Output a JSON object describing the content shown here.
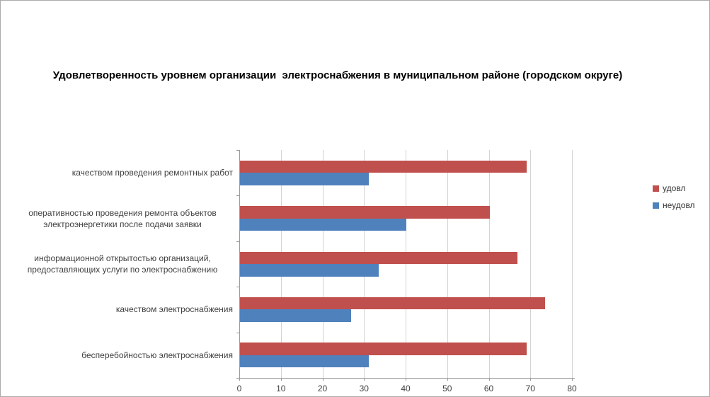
{
  "chart_data": {
    "type": "bar",
    "orientation": "horizontal",
    "title": "Удовлетворенность уровнем организации  электроснабжения в муниципальном районе (городском округе)",
    "categories": [
      "качеством проведения ремонтных работ",
      "оперативностью проведения ремонта объектов электроэнергетики после подачи заявки",
      "информационной открытостью организаций, предоставляющих услуги по электроснабжению",
      "качеством электроснабжения",
      "бесперебойностью электроснабжения"
    ],
    "series": [
      {
        "name": "удовл",
        "color": "#c0504d",
        "values": [
          69,
          60,
          66.7,
          73.3,
          69
        ]
      },
      {
        "name": "неудовл",
        "color": "#4f81bd",
        "values": [
          31,
          40,
          33.3,
          26.7,
          31
        ]
      }
    ],
    "x_ticks": [
      0,
      10,
      20,
      30,
      40,
      50,
      60,
      70,
      80
    ],
    "xlim": [
      0,
      80
    ],
    "grid": true,
    "legend_position": "right",
    "colors": {
      "gridline": "#d3d3d3",
      "axis": "#9a9a9a",
      "tick_text": "#3f3f3f",
      "title_text": "#000000",
      "background": "#ffffff",
      "border": "#ababab"
    }
  }
}
